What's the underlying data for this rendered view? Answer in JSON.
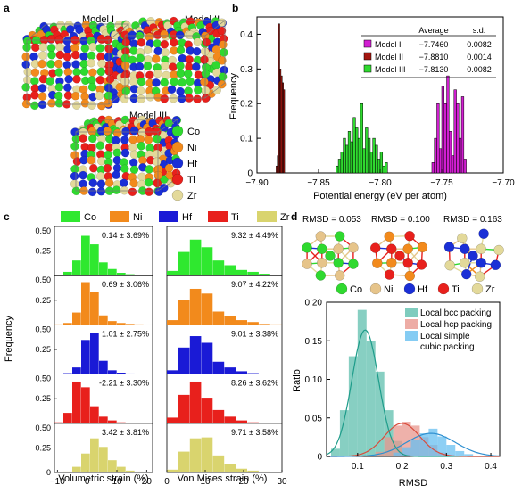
{
  "panel_labels": {
    "a": "a",
    "b": "b",
    "c": "c",
    "d": "d"
  },
  "panel_a": {
    "models": [
      "Model I",
      "Model II",
      "Model III"
    ],
    "legend": [
      {
        "label": "Co",
        "color": "#2fd92f"
      },
      {
        "label": "Ni",
        "color": "#f28a1c"
      },
      {
        "label": "Hf",
        "color": "#1a2fd6"
      },
      {
        "label": "Ti",
        "color": "#e8201c"
      },
      {
        "label": "Zr",
        "color": "#e3d99a"
      }
    ]
  },
  "panel_b": {
    "table": {
      "headers": [
        "Average",
        "s.d."
      ],
      "rows": [
        {
          "label": "Model I",
          "average": "−7.7460",
          "sd": "0.0082",
          "color": "#d11ed1"
        },
        {
          "label": "Model II",
          "average": "−7.8810",
          "sd": "0.0014",
          "color": "#a3160f"
        },
        {
          "label": "Model III",
          "average": "−7.8130",
          "sd": "0.0082",
          "color": "#2fd92f"
        }
      ]
    },
    "ylabel": "Frequency",
    "xlabel": "Potential energy (eV per atom)"
  },
  "panel_c": {
    "legend": [
      {
        "label": "Co",
        "color": "#2fe82f"
      },
      {
        "label": "Ni",
        "color": "#f28a1c"
      },
      {
        "label": "Hf",
        "color": "#1a1ad6"
      },
      {
        "label": "Ti",
        "color": "#e8201c"
      },
      {
        "label": "Zr",
        "color": "#d9d46e"
      }
    ],
    "ylabel": "Frequency",
    "xlabel_left": "Volumetric strain (%)",
    "xlabel_right": "Von Mises strain (%)"
  },
  "panel_d": {
    "rmsd_labels": [
      "RMSD = 0.053",
      "RMSD = 0.100",
      "RMSD = 0.163"
    ],
    "legend": [
      {
        "label": "Co",
        "color": "#2fd92f"
      },
      {
        "label": "Ni",
        "color": "#e6c48a"
      },
      {
        "label": "Hf",
        "color": "#1a2fd6"
      },
      {
        "label": "Ti",
        "color": "#e8201c"
      },
      {
        "label": "Zr",
        "color": "#e3d99a"
      }
    ],
    "ylabel": "Ratio",
    "xlabel": "RMSD"
  },
  "chart_data": [
    {
      "type": "bar",
      "panel": "b",
      "xlabel": "Potential energy (eV per atom)",
      "ylabel": "Frequency",
      "xlim": [
        -7.9,
        -7.7
      ],
      "ylim": [
        0,
        0.45
      ],
      "xticks": [
        "−7.90",
        "−7.85",
        "−7.80",
        "−7.75",
        "−7.70"
      ],
      "yticks": [
        "0",
        "0.1",
        "0.2",
        "0.3",
        "0.4"
      ],
      "series": [
        {
          "name": "Model II",
          "color": "#a3160f",
          "bin_width": 0.001,
          "x": [
            -7.884,
            -7.883,
            -7.882,
            -7.881,
            -7.88,
            -7.879,
            -7.878
          ],
          "values": [
            0.02,
            0.05,
            0.43,
            0.3,
            0.28,
            0.26,
            0.24
          ]
        },
        {
          "name": "Model III",
          "color": "#2fd92f",
          "bin_width": 0.002,
          "x": [
            -7.835,
            -7.833,
            -7.831,
            -7.829,
            -7.827,
            -7.825,
            -7.823,
            -7.821,
            -7.819,
            -7.817,
            -7.815,
            -7.813,
            -7.811,
            -7.809,
            -7.807,
            -7.805,
            -7.803,
            -7.801,
            -7.799,
            -7.797,
            -7.795
          ],
          "values": [
            0.02,
            0.04,
            0.06,
            0.1,
            0.08,
            0.12,
            0.09,
            0.16,
            0.13,
            0.1,
            0.2,
            0.07,
            0.13,
            0.1,
            0.06,
            0.1,
            0.08,
            0.04,
            0.06,
            0.02,
            0.03
          ]
        },
        {
          "name": "Model I",
          "color": "#d11ed1",
          "bin_width": 0.002,
          "x": [
            -7.757,
            -7.755,
            -7.753,
            -7.751,
            -7.749,
            -7.747,
            -7.745,
            -7.743,
            -7.741,
            -7.739,
            -7.737,
            -7.735,
            -7.733,
            -7.731
          ],
          "values": [
            0.03,
            0.1,
            0.2,
            0.07,
            0.25,
            0.2,
            0.28,
            0.12,
            0.05,
            0.24,
            0.2,
            0.1,
            0.22,
            0.04
          ]
        }
      ]
    },
    {
      "type": "bar",
      "panel": "c-left",
      "xlabel": "Volumetric strain (%)",
      "ylabel": "Frequency",
      "xlim": [
        -11,
        22
      ],
      "ylim": [
        0,
        0.5
      ],
      "xticks": [
        "−10",
        "0",
        "10",
        "20"
      ],
      "yticks": [
        "0",
        "0.25"
      ],
      "bin_edges": [
        -11,
        -8,
        -5,
        -2,
        1,
        4,
        7,
        10,
        13,
        16,
        19,
        22
      ],
      "series": [
        {
          "name": "Co",
          "annotation": "0.14 ± 3.69%",
          "values": [
            0.01,
            0.04,
            0.16,
            0.42,
            0.33,
            0.14,
            0.07,
            0.03,
            0.015,
            0.01,
            0.005
          ]
        },
        {
          "name": "Ni",
          "annotation": "0.69 ± 3.06%",
          "values": [
            0.005,
            0.02,
            0.13,
            0.45,
            0.35,
            0.1,
            0.04,
            0.02,
            0.01,
            0.005,
            0.003
          ]
        },
        {
          "name": "Hf",
          "annotation": "1.01 ± 2.75%",
          "values": [
            0.003,
            0.01,
            0.07,
            0.36,
            0.43,
            0.14,
            0.04,
            0.015,
            0.006,
            0.003,
            0.002
          ]
        },
        {
          "name": "Ti",
          "annotation": "-2.21 ± 3.30%",
          "values": [
            0.01,
            0.11,
            0.44,
            0.38,
            0.18,
            0.07,
            0.03,
            0.01,
            0.005,
            0.003,
            0.002
          ]
        },
        {
          "name": "Zr",
          "annotation": "3.42 ± 3.81%",
          "values": [
            0.003,
            0.01,
            0.06,
            0.2,
            0.36,
            0.27,
            0.13,
            0.06,
            0.02,
            0.01,
            0.005
          ]
        }
      ]
    },
    {
      "type": "bar",
      "panel": "c-right",
      "xlabel": "Von Mises strain (%)",
      "ylabel": "Frequency",
      "xlim": [
        0,
        30
      ],
      "ylim": [
        0,
        0.5
      ],
      "xticks": [
        "0",
        "10",
        "20",
        "30"
      ],
      "bin_edges": [
        0,
        3,
        6,
        9,
        12,
        15,
        18,
        21,
        24,
        27,
        30
      ],
      "series": [
        {
          "name": "Co",
          "annotation": "9.32 ± 4.49%",
          "values": [
            0.05,
            0.25,
            0.38,
            0.3,
            0.16,
            0.11,
            0.06,
            0.04,
            0.02,
            0.01
          ]
        },
        {
          "name": "Ni",
          "annotation": "9.07 ± 4.22%",
          "values": [
            0.05,
            0.26,
            0.38,
            0.33,
            0.14,
            0.09,
            0.05,
            0.03,
            0.01,
            0.005
          ]
        },
        {
          "name": "Hf",
          "annotation": "9.01 ± 3.38%",
          "values": [
            0.04,
            0.28,
            0.4,
            0.33,
            0.13,
            0.07,
            0.03,
            0.01,
            0.005,
            0.003
          ]
        },
        {
          "name": "Ti",
          "annotation": "8.26 ± 3.62%",
          "values": [
            0.06,
            0.3,
            0.44,
            0.27,
            0.14,
            0.07,
            0.03,
            0.01,
            0.005,
            0.003
          ]
        },
        {
          "name": "Zr",
          "annotation": "9.71 ± 3.58%",
          "values": [
            0.03,
            0.22,
            0.36,
            0.37,
            0.18,
            0.09,
            0.04,
            0.02,
            0.01,
            0.005
          ]
        }
      ]
    },
    {
      "type": "bar",
      "panel": "d",
      "xlabel": "RMSD",
      "ylabel": "Ratio",
      "xlim": [
        0.03,
        0.42
      ],
      "ylim": [
        0,
        0.2
      ],
      "xticks": [
        "0.1",
        "0.2",
        "0.3",
        "0.4"
      ],
      "yticks": [
        "0",
        "0.05",
        "0.10",
        "0.15",
        "0.20"
      ],
      "series": [
        {
          "name": "Local bcc packing",
          "color": "#5fbfae",
          "bin_width": 0.02,
          "x": [
            0.05,
            0.07,
            0.09,
            0.11,
            0.13,
            0.15,
            0.17,
            0.19
          ],
          "values": [
            0.01,
            0.06,
            0.13,
            0.19,
            0.15,
            0.11,
            0.06,
            0.02
          ],
          "fit": {
            "mu": 0.117,
            "sigma": 0.03,
            "peak": 0.164,
            "color": "#1e9c8a"
          }
        },
        {
          "name": "Local hcp packing",
          "color": "#e8978e",
          "bin_width": 0.02,
          "x": [
            0.15,
            0.17,
            0.19,
            0.21,
            0.23,
            0.25,
            0.27,
            0.29
          ],
          "values": [
            0.006,
            0.025,
            0.04,
            0.045,
            0.04,
            0.025,
            0.015,
            0.005
          ],
          "fit": {
            "mu": 0.2,
            "sigma": 0.04,
            "peak": 0.043,
            "color": "#d94c3d"
          }
        },
        {
          "name": "Local simple cubic packing",
          "color": "#67bff0",
          "bin_width": 0.02,
          "x": [
            0.19,
            0.21,
            0.23,
            0.25,
            0.27,
            0.29,
            0.31,
            0.33,
            0.35
          ],
          "values": [
            0.005,
            0.012,
            0.022,
            0.03,
            0.036,
            0.026,
            0.015,
            0.007,
            0.003
          ],
          "fit": {
            "mu": 0.265,
            "sigma": 0.055,
            "peak": 0.03,
            "color": "#2e8fd0"
          }
        }
      ]
    }
  ]
}
